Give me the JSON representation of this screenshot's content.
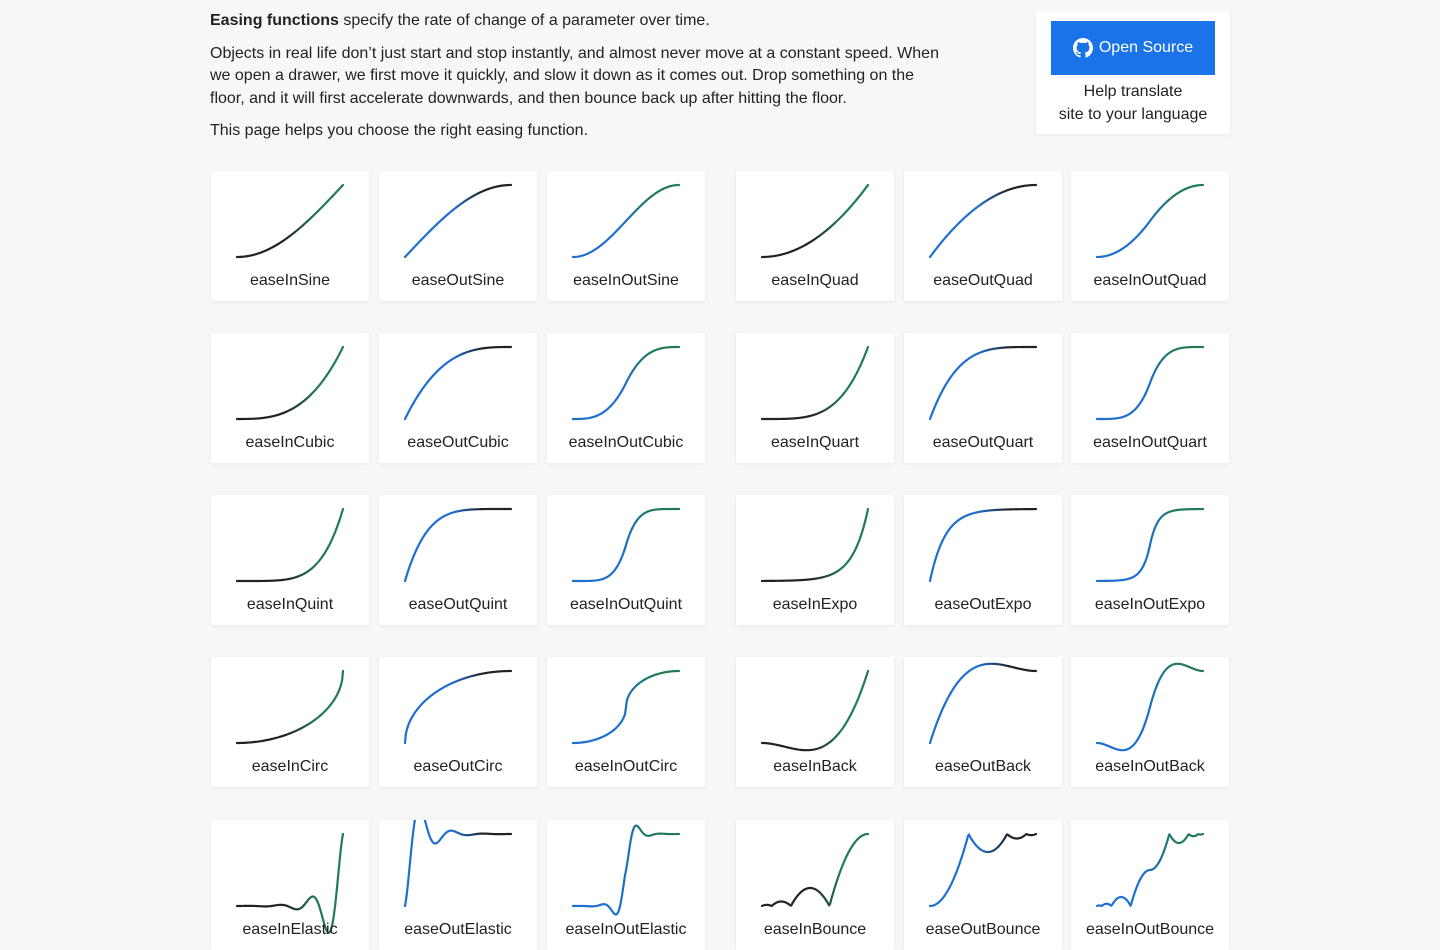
{
  "intro": {
    "strong": "Easing functions",
    "line1_rest": " specify the rate of change of a parameter over time.",
    "paragraph2": "Objects in real life don’t just start and stop instantly, and almost never move at a constant speed. When we open a drawer, we first move it quickly, and slow it down as it comes out. Drop something on the floor, and it will first accelerate downwards, and then bounce back up after hitting the floor.",
    "paragraph3": "This page helps you choose the right easing function."
  },
  "open_source": {
    "button_label": "Open Source",
    "icon": "github-icon",
    "help_line1": "Help translate",
    "help_line2": "site to your language"
  },
  "colors": {
    "ease_in": "#222222",
    "ease_out": "#1e6fcf",
    "ease_end": "#227a57",
    "button": "#1a73e8"
  },
  "easings": [
    "easeInSine",
    "easeOutSine",
    "easeInOutSine",
    "easeInQuad",
    "easeOutQuad",
    "easeInOutQuad",
    "easeInCubic",
    "easeOutCubic",
    "easeInOutCubic",
    "easeInQuart",
    "easeOutQuart",
    "easeInOutQuart",
    "easeInQuint",
    "easeOutQuint",
    "easeInOutQuint",
    "easeInExpo",
    "easeOutExpo",
    "easeInOutExpo",
    "easeInCirc",
    "easeOutCirc",
    "easeInOutCirc",
    "easeInBack",
    "easeOutBack",
    "easeInOutBack",
    "easeInElastic",
    "easeOutElastic",
    "easeInOutElastic",
    "easeInBounce",
    "easeOutBounce",
    "easeInOutBounce"
  ]
}
